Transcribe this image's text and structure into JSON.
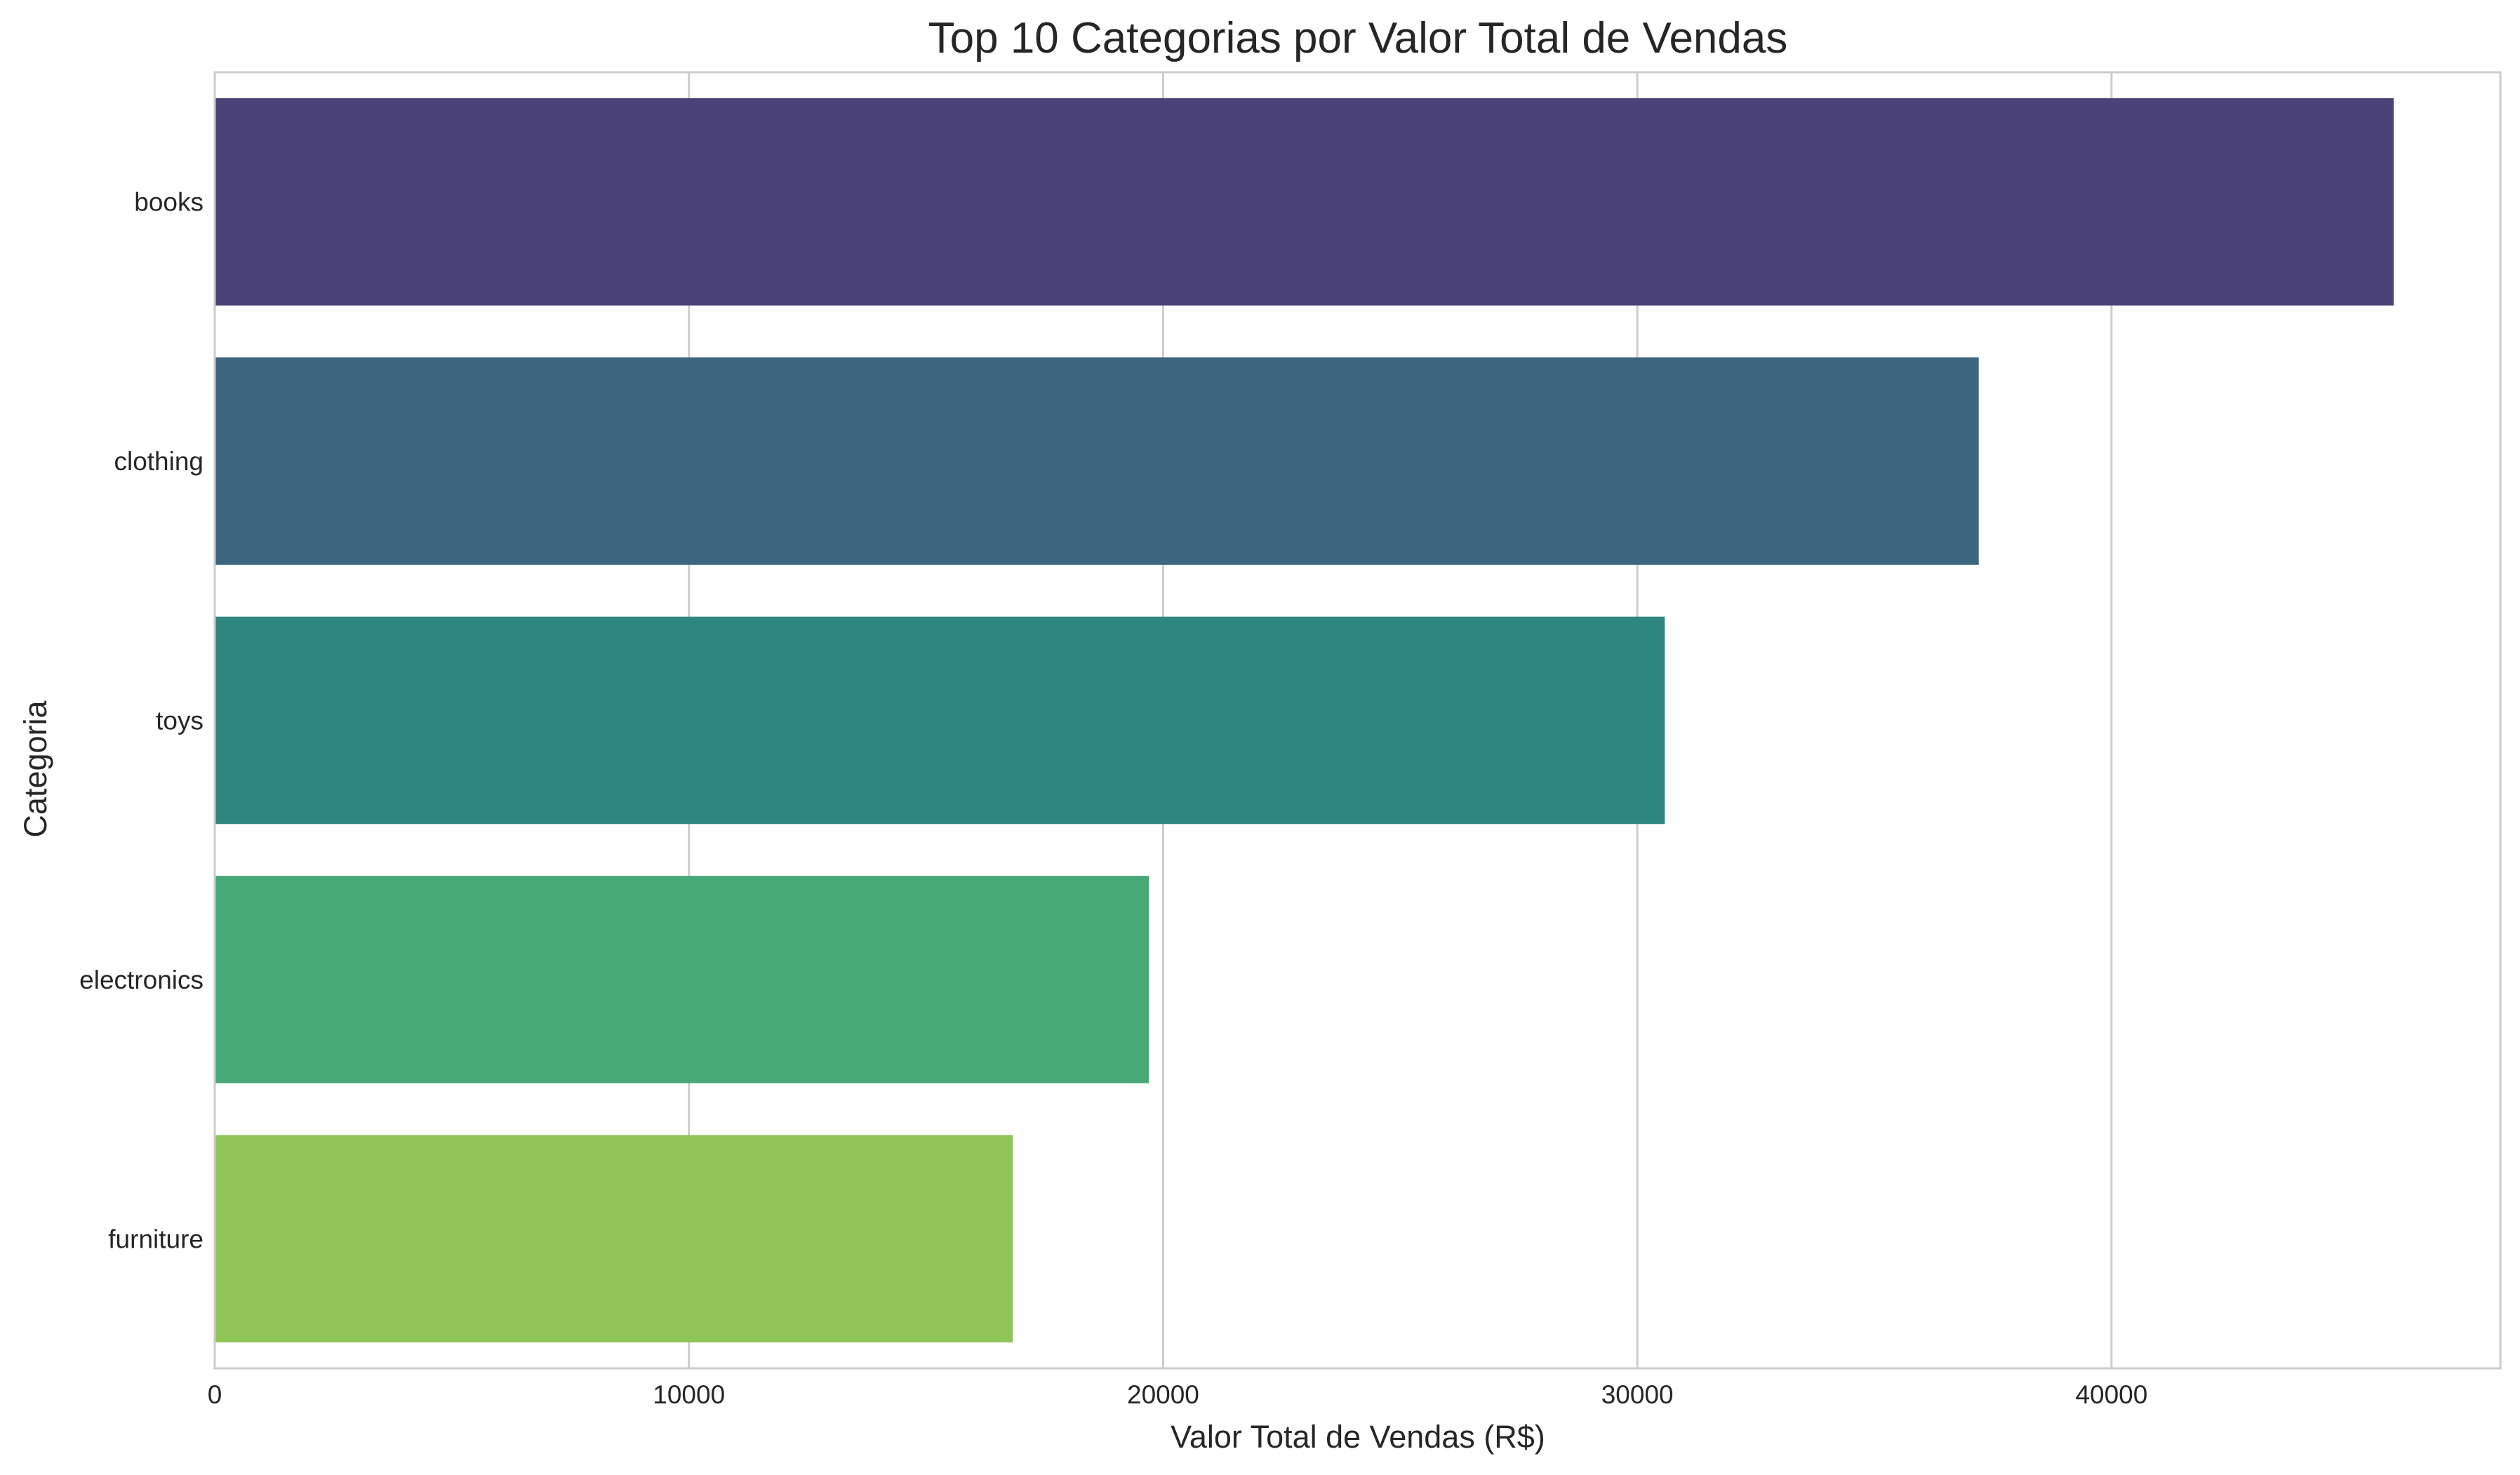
{
  "chart_data": {
    "type": "bar",
    "orientation": "horizontal",
    "title": "Top 10 Categorias por Valor Total de Vendas",
    "xlabel": "Valor Total de Vendas (R$)",
    "ylabel": "Categoria",
    "categories": [
      "books",
      "clothing",
      "toys",
      "electronics",
      "furniture"
    ],
    "values": [
      45950,
      37200,
      30580,
      19700,
      16830
    ],
    "colors": [
      "#4b4278",
      "#3e6680",
      "#2f8680",
      "#47a978",
      "#8fc556"
    ],
    "xlim": [
      0,
      48200
    ],
    "xticks": [
      0,
      10000,
      20000,
      30000,
      40000
    ],
    "xtick_labels": [
      "0",
      "10000",
      "20000",
      "30000",
      "40000"
    ],
    "grid": "vertical",
    "legend": "none"
  }
}
